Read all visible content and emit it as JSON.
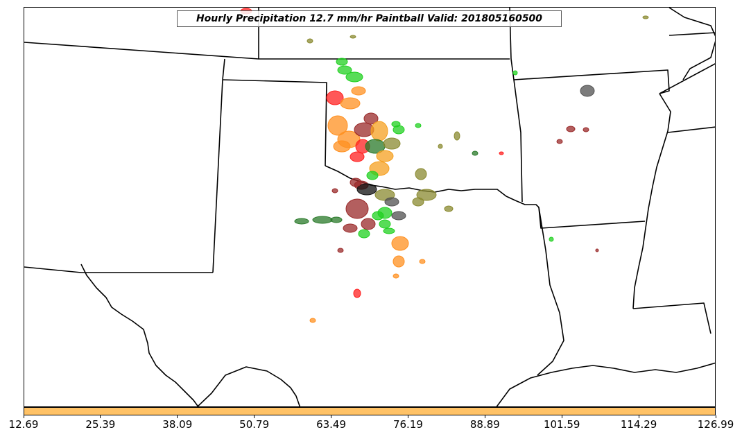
{
  "title": "Hourly Precipitation 12.7 mm/hr Paintball Valid: 201805160500",
  "colorbar": {
    "color": "#ffc266",
    "ticks": [
      "12.69",
      "25.39",
      "38.09",
      "50.79",
      "63.49",
      "76.19",
      "88.89",
      "101.59",
      "114.29",
      "126.99"
    ]
  },
  "palette": {
    "red": "#ff2020",
    "orange": "#ff9020",
    "amber": "#f5a020",
    "green": "#20d020",
    "darkgreen": "#2a7a2a",
    "olive": "#8a8a30",
    "darkred": "#9a2a2a",
    "gray": "#505050",
    "black": "#101010"
  }
}
